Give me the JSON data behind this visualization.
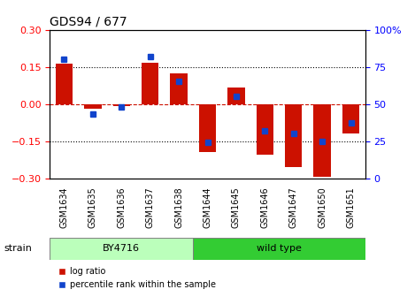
{
  "title": "GDS94 / 677",
  "samples": [
    "GSM1634",
    "GSM1635",
    "GSM1636",
    "GSM1637",
    "GSM1638",
    "GSM1644",
    "GSM1645",
    "GSM1646",
    "GSM1647",
    "GSM1650",
    "GSM1651"
  ],
  "log_ratio": [
    0.162,
    -0.02,
    -0.01,
    0.168,
    0.125,
    -0.195,
    0.065,
    -0.205,
    -0.255,
    -0.295,
    -0.12
  ],
  "percentile_rank": [
    80,
    43,
    48,
    82,
    65,
    24,
    55,
    32,
    30,
    25,
    37
  ],
  "strain_groups": [
    {
      "label": "BY4716",
      "start": 0,
      "end": 5,
      "color": "#bbffbb"
    },
    {
      "label": "wild type",
      "start": 5,
      "end": 11,
      "color": "#33cc33"
    }
  ],
  "ylim": [
    -0.3,
    0.3
  ],
  "right_ylim": [
    0,
    100
  ],
  "right_yticks": [
    0,
    25,
    50,
    75,
    100
  ],
  "right_yticklabels": [
    "0",
    "25",
    "50",
    "75",
    "100%"
  ],
  "left_yticks": [
    -0.3,
    -0.15,
    0,
    0.15,
    0.3
  ],
  "dotted_lines": [
    -0.15,
    0.15
  ],
  "bar_color": "#cc1100",
  "dot_color": "#1144cc",
  "bar_width": 0.6,
  "background_color": "#ffffff",
  "plot_bg_color": "#ffffff"
}
